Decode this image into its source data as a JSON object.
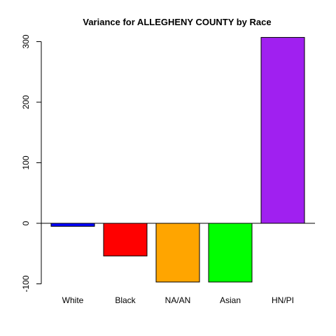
{
  "chart_data": {
    "type": "bar",
    "title": "Variance for ALLEGHENY COUNTY by Race",
    "xlabel": "",
    "ylabel": "",
    "categories": [
      "White",
      "Black",
      "NA/AN",
      "Asian",
      "HN/PI"
    ],
    "values": [
      -5,
      -54,
      -97,
      -97,
      307
    ],
    "colors": [
      "#0000ff",
      "#ff0000",
      "#ffa500",
      "#00ff00",
      "#a020f0"
    ],
    "ylim": [
      -100,
      300
    ],
    "yticks": [
      -100,
      0,
      100,
      200,
      300
    ],
    "zero_line": true,
    "grid": false,
    "legend": "none"
  }
}
